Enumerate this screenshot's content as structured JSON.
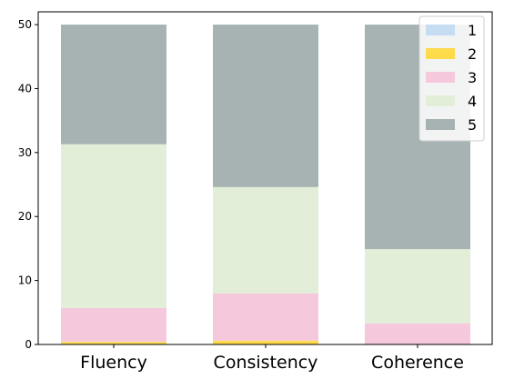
{
  "chart_data": {
    "type": "bar",
    "stacked": true,
    "categories": [
      "Fluency",
      "Consistency",
      "Coherence"
    ],
    "series": [
      {
        "name": "1",
        "color": "#c6dcf2",
        "values": [
          0.0,
          0.0,
          0.0
        ]
      },
      {
        "name": "2",
        "color": "#fddb4a",
        "values": [
          0.4,
          0.6,
          0.0
        ]
      },
      {
        "name": "3",
        "color": "#f5c8dc",
        "values": [
          5.3,
          7.4,
          3.3
        ]
      },
      {
        "name": "4",
        "color": "#e2eed8",
        "values": [
          25.6,
          16.6,
          11.6
        ]
      },
      {
        "name": "5",
        "color": "#a7b3b3",
        "values": [
          18.7,
          25.4,
          35.1
        ]
      }
    ],
    "title": "",
    "xlabel": "",
    "ylabel": "",
    "ylim": [
      0,
      52
    ],
    "yticks": [
      0,
      10,
      20,
      30,
      40,
      50
    ],
    "grid": false,
    "legend_position": "top-right"
  }
}
